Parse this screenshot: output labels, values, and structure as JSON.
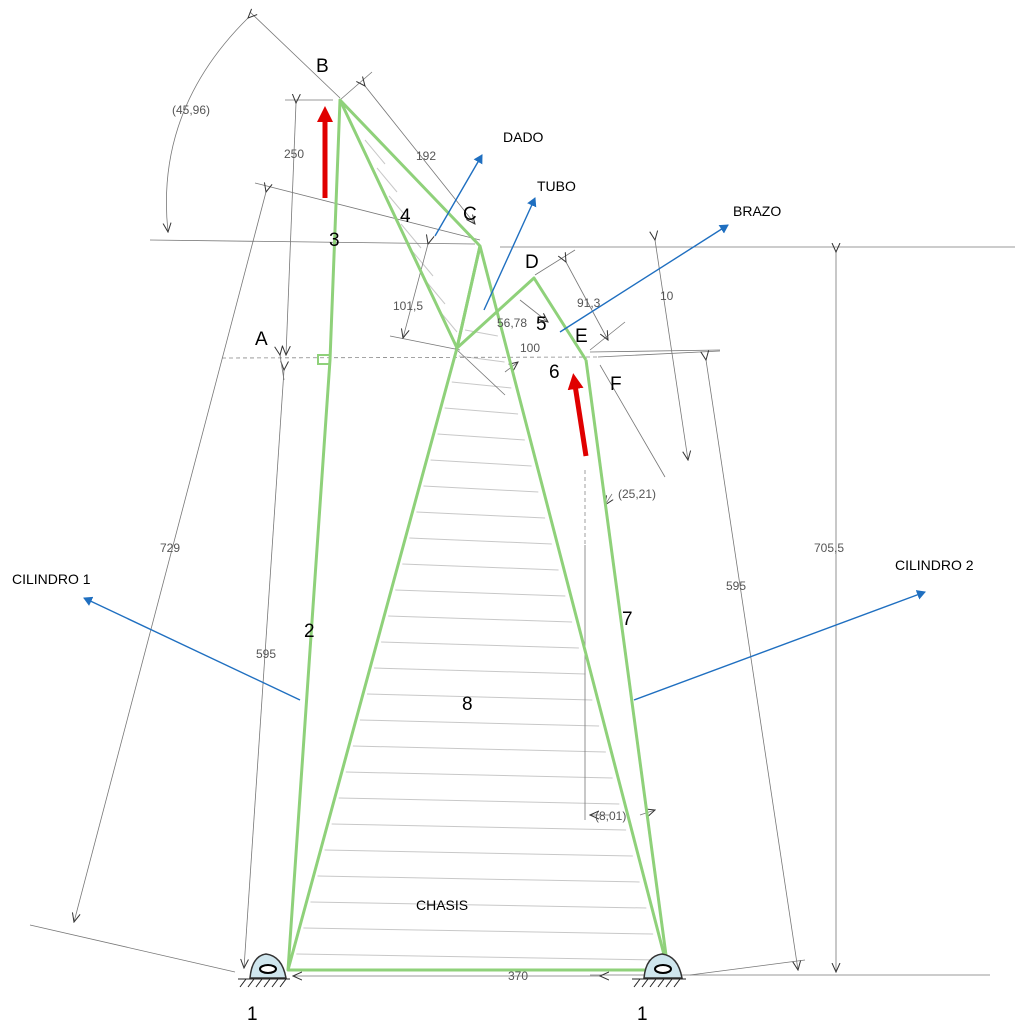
{
  "points": {
    "A": "A",
    "B": "B",
    "C": "C",
    "D": "D",
    "E": "E",
    "F": "F"
  },
  "links": {
    "l1_left": "1",
    "l1_right": "1",
    "l2": "2",
    "l3": "3",
    "l4": "4",
    "l5": "5",
    "l6": "6",
    "l7": "7",
    "l8": "8"
  },
  "components": {
    "dado": "DADO",
    "tubo": "TUBO",
    "brazo": "BRAZO",
    "cilindro1": "CILINDRO 1",
    "cilindro2": "CILINDRO 2",
    "chasis": "CHASIS"
  },
  "dimensions": {
    "angle_b": "(45,96)",
    "d250": "250",
    "d192": "192",
    "d101_5": "101,5",
    "d56_78": "56,78",
    "d100": "100",
    "d91_3": "91,3",
    "d10": "10",
    "angle_f": "(25,21)",
    "d729": "729",
    "d595_left": "595",
    "d595_right": "595",
    "d705_5": "705,5",
    "angle_bottom": "(8,01)",
    "d370": "370"
  },
  "colors": {
    "links": "#8fd17a",
    "force_arrows": "#e00000",
    "callouts": "#1f6fc0"
  }
}
